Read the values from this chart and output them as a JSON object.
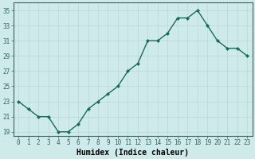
{
  "x": [
    0,
    1,
    2,
    3,
    4,
    5,
    6,
    7,
    8,
    9,
    10,
    11,
    12,
    13,
    14,
    15,
    16,
    17,
    18,
    19,
    20,
    21,
    22,
    23
  ],
  "y": [
    23,
    22,
    21,
    21,
    19,
    19,
    20,
    22,
    23,
    24,
    25,
    27,
    28,
    31,
    31,
    32,
    34,
    34,
    35,
    33,
    31,
    30,
    30,
    29
  ],
  "line_color": "#1a6b5a",
  "marker": "D",
  "marker_size": 2.0,
  "bg_color": "#ceeaea",
  "grid_color": "#b8d8d8",
  "xlabel": "Humidex (Indice chaleur)",
  "xlabel_fontsize": 7,
  "xlabel_fontweight": "bold",
  "xlim": [
    -0.5,
    23.5
  ],
  "ylim": [
    18.5,
    36
  ],
  "yticks": [
    19,
    21,
    23,
    25,
    27,
    29,
    31,
    33,
    35
  ],
  "xticks": [
    0,
    1,
    2,
    3,
    4,
    5,
    6,
    7,
    8,
    9,
    10,
    11,
    12,
    13,
    14,
    15,
    16,
    17,
    18,
    19,
    20,
    21,
    22,
    23
  ],
  "tick_fontsize": 5.5,
  "linewidth": 1.0,
  "spine_color": "#336666",
  "tick_color": "#336666"
}
